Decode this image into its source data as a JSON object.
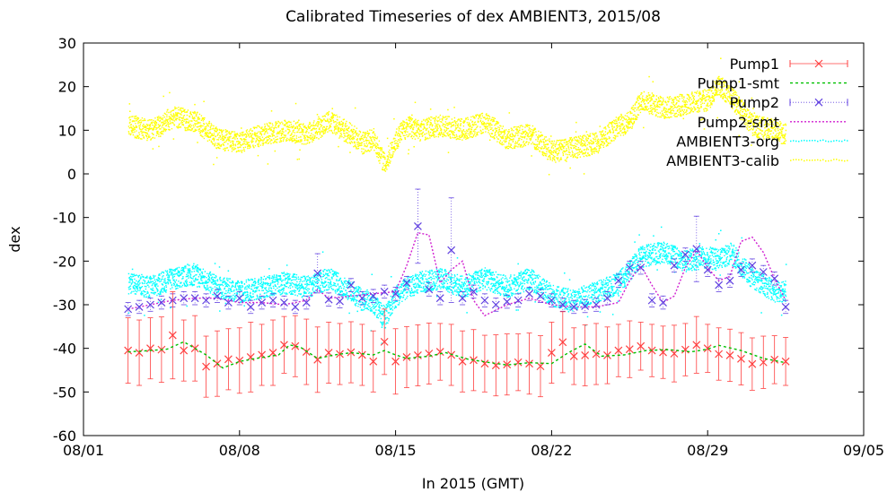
{
  "chart_data": {
    "type": "scatter",
    "title": "Calibrated Timeseries of dex AMBIENT3, 2015/08",
    "xlabel": "In 2015 (GMT)",
    "ylabel": "dex",
    "xlim": [
      "2015-08-01",
      "2015-09-05"
    ],
    "ylim": [
      -60,
      30
    ],
    "x_ticks": [
      {
        "date": "2015-08-01",
        "label": "08/01"
      },
      {
        "date": "2015-08-08",
        "label": "08/08"
      },
      {
        "date": "2015-08-15",
        "label": "08/15"
      },
      {
        "date": "2015-08-22",
        "label": "08/22"
      },
      {
        "date": "2015-08-29",
        "label": "08/29"
      },
      {
        "date": "2015-09-05",
        "label": "09/05"
      }
    ],
    "y_ticks": [
      30,
      20,
      10,
      0,
      -10,
      -20,
      -30,
      -40,
      -50,
      -60
    ],
    "grid": false,
    "legend_position": "top-right",
    "series": [
      {
        "name": "Pump1",
        "style": "points-errorbars",
        "marker": "x",
        "color": "#ff4040",
        "x": [
          "2015-08-03T00:00",
          "2015-08-03T12:00",
          "2015-08-04T00:00",
          "2015-08-04T12:00",
          "2015-08-05T00:00",
          "2015-08-05T12:00",
          "2015-08-06T00:00",
          "2015-08-06T12:00",
          "2015-08-07T00:00",
          "2015-08-07T12:00",
          "2015-08-08T00:00",
          "2015-08-08T12:00",
          "2015-08-09T00:00",
          "2015-08-09T12:00",
          "2015-08-10T00:00",
          "2015-08-10T12:00",
          "2015-08-11T00:00",
          "2015-08-11T12:00",
          "2015-08-12T00:00",
          "2015-08-12T12:00",
          "2015-08-13T00:00",
          "2015-08-13T12:00",
          "2015-08-14T00:00",
          "2015-08-14T12:00",
          "2015-08-15T00:00",
          "2015-08-15T12:00",
          "2015-08-16T00:00",
          "2015-08-16T12:00",
          "2015-08-17T00:00",
          "2015-08-17T12:00",
          "2015-08-18T00:00",
          "2015-08-18T12:00",
          "2015-08-19T00:00",
          "2015-08-19T12:00",
          "2015-08-20T00:00",
          "2015-08-20T12:00",
          "2015-08-21T00:00",
          "2015-08-21T12:00",
          "2015-08-22T00:00",
          "2015-08-22T12:00",
          "2015-08-23T00:00",
          "2015-08-23T12:00",
          "2015-08-24T00:00",
          "2015-08-24T12:00",
          "2015-08-25T00:00",
          "2015-08-25T12:00",
          "2015-08-26T00:00",
          "2015-08-26T12:00",
          "2015-08-27T00:00",
          "2015-08-27T12:00",
          "2015-08-28T00:00",
          "2015-08-28T12:00",
          "2015-08-29T00:00",
          "2015-08-29T12:00",
          "2015-08-30T00:00",
          "2015-08-30T12:00",
          "2015-08-31T00:00",
          "2015-08-31T12:00",
          "2015-09-01T00:00",
          "2015-09-01T12:00"
        ],
        "y": [
          -40.5,
          -41,
          -40,
          -40.3,
          -37,
          -40.5,
          -40,
          -44.2,
          -43.5,
          -42.5,
          -42.8,
          -42,
          -41.5,
          -41,
          -39.2,
          -39.5,
          -40.8,
          -42.6,
          -41,
          -41.3,
          -40.9,
          -41.5,
          -43,
          -38.5,
          -43,
          -42,
          -41.6,
          -41.2,
          -40.8,
          -41.5,
          -43,
          -42.7,
          -43.5,
          -43.9,
          -43.7,
          -43.2,
          -43.5,
          -44.1,
          -41,
          -38.6,
          -41.8,
          -41.6,
          -41.3,
          -41.6,
          -40.5,
          -40.2,
          -39.5,
          -40.5,
          -40.9,
          -41.2,
          -40.3,
          -39.2,
          -40,
          -41.3,
          -41.6,
          -42.4,
          -43.6,
          -43.2,
          -42.6,
          -43
        ],
        "yerr": [
          7.5,
          7.5,
          7,
          7.5,
          10,
          7,
          7.5,
          7,
          7.5,
          7,
          7.5,
          8,
          7,
          7.5,
          6.5,
          7,
          7.5,
          7.5,
          7,
          7,
          7,
          7,
          7,
          7.5,
          7.5,
          7,
          7,
          7,
          6.5,
          7,
          7,
          7,
          6.5,
          7,
          7,
          6.5,
          7,
          7,
          7,
          7,
          6.5,
          7,
          7,
          6.5,
          6,
          6.5,
          5.5,
          6,
          6,
          6.5,
          6,
          6.5,
          5.5,
          6,
          6,
          6,
          6,
          6,
          5.5,
          5.5
        ]
      },
      {
        "name": "Pump1-smt",
        "style": "line",
        "dash": "3,3",
        "color": "#00c000",
        "x": [
          "2015-08-03T00:00",
          "2015-08-04T00:00",
          "2015-08-04T18:00",
          "2015-08-05T12:00",
          "2015-08-06T12:00",
          "2015-08-07T06:00",
          "2015-08-08T00:00",
          "2015-08-08T18:00",
          "2015-08-09T18:00",
          "2015-08-10T06:00",
          "2015-08-10T18:00",
          "2015-08-11T12:00",
          "2015-08-12T06:00",
          "2015-08-13T00:00",
          "2015-08-14T00:00",
          "2015-08-14T12:00",
          "2015-08-15T00:00",
          "2015-08-15T12:00",
          "2015-08-16T12:00",
          "2015-08-17T06:00",
          "2015-08-18T06:00",
          "2015-08-19T06:00",
          "2015-08-20T00:00",
          "2015-08-21T00:00",
          "2015-08-22T00:00",
          "2015-08-22T18:00",
          "2015-08-23T12:00",
          "2015-08-24T06:00",
          "2015-08-25T06:00",
          "2015-08-26T06:00",
          "2015-08-27T06:00",
          "2015-08-28T06:00",
          "2015-08-29T00:00",
          "2015-08-29T12:00",
          "2015-08-30T12:00",
          "2015-08-31T12:00",
          "2015-09-01T12:00"
        ],
        "y": [
          -40.8,
          -40.5,
          -40.2,
          -38.5,
          -41.5,
          -44.5,
          -43,
          -42.3,
          -41.5,
          -39.2,
          -39.8,
          -42.3,
          -41.5,
          -41,
          -41.5,
          -40.5,
          -41.5,
          -42.3,
          -41.8,
          -41,
          -42.5,
          -43.3,
          -43.8,
          -43.3,
          -43.5,
          -41,
          -39,
          -41.8,
          -41.5,
          -40.5,
          -40.3,
          -40.8,
          -40.2,
          -39.3,
          -40.5,
          -42.3,
          -43.3
        ]
      },
      {
        "name": "Pump2",
        "style": "points-errorbars",
        "marker": "x",
        "color": "#6040e0",
        "x": [
          "2015-08-03T00:00",
          "2015-08-03T12:00",
          "2015-08-04T00:00",
          "2015-08-04T12:00",
          "2015-08-05T00:00",
          "2015-08-05T12:00",
          "2015-08-06T00:00",
          "2015-08-06T12:00",
          "2015-08-07T00:00",
          "2015-08-07T12:00",
          "2015-08-08T00:00",
          "2015-08-08T12:00",
          "2015-08-09T00:00",
          "2015-08-09T12:00",
          "2015-08-10T00:00",
          "2015-08-10T12:00",
          "2015-08-11T00:00",
          "2015-08-11T12:00",
          "2015-08-12T00:00",
          "2015-08-12T12:00",
          "2015-08-13T00:00",
          "2015-08-13T12:00",
          "2015-08-14T00:00",
          "2015-08-14T12:00",
          "2015-08-15T00:00",
          "2015-08-15T12:00",
          "2015-08-16T00:00",
          "2015-08-16T12:00",
          "2015-08-17T00:00",
          "2015-08-17T12:00",
          "2015-08-18T00:00",
          "2015-08-18T12:00",
          "2015-08-19T00:00",
          "2015-08-19T12:00",
          "2015-08-20T00:00",
          "2015-08-20T12:00",
          "2015-08-21T00:00",
          "2015-08-21T12:00",
          "2015-08-22T00:00",
          "2015-08-22T12:00",
          "2015-08-23T00:00",
          "2015-08-23T12:00",
          "2015-08-24T00:00",
          "2015-08-24T12:00",
          "2015-08-25T00:00",
          "2015-08-25T12:00",
          "2015-08-26T00:00",
          "2015-08-26T12:00",
          "2015-08-27T00:00",
          "2015-08-27T12:00",
          "2015-08-28T00:00",
          "2015-08-28T12:00",
          "2015-08-29T00:00",
          "2015-08-29T12:00",
          "2015-08-30T00:00",
          "2015-08-30T12:00",
          "2015-08-31T00:00",
          "2015-08-31T12:00",
          "2015-09-01T00:00",
          "2015-09-01T12:00"
        ],
        "y": [
          -31,
          -30.5,
          -30,
          -29.5,
          -29,
          -28.5,
          -28.5,
          -29,
          -28,
          -29.5,
          -28.5,
          -30.5,
          -29.5,
          -29,
          -29.5,
          -30.5,
          -29.5,
          -22.8,
          -28.8,
          -29.2,
          -25.5,
          -28.5,
          -28,
          -27,
          -27.5,
          -25,
          -12,
          -26.5,
          -28.5,
          -17.5,
          -28.5,
          -27,
          -29,
          -30,
          -29.3,
          -29,
          -27.5,
          -28,
          -29,
          -30,
          -30.5,
          -30.3,
          -30,
          -28.5,
          -24.5,
          -21.5,
          -21.5,
          -29,
          -29.5,
          -21,
          -18.5,
          -17.2,
          -22,
          -25.5,
          -24.5,
          -22,
          -21,
          -22.5,
          -24,
          -30.5
        ],
        "yerr": [
          1.5,
          1.5,
          1.5,
          1.5,
          1.5,
          1.5,
          1.5,
          1.5,
          1.5,
          1.5,
          1.5,
          1.5,
          1.5,
          1.5,
          1.5,
          1.5,
          1.5,
          4.5,
          1.5,
          1.5,
          1.5,
          1.5,
          1.5,
          1.5,
          1.5,
          1.5,
          8.5,
          1.5,
          1.5,
          12,
          1.5,
          1.5,
          1.5,
          1.5,
          1.5,
          1.5,
          1.5,
          1.5,
          1.5,
          1.5,
          1.5,
          1.5,
          1.5,
          1.5,
          1.5,
          1.5,
          1.5,
          1.5,
          1.5,
          1.5,
          1.5,
          7.5,
          1.5,
          1.5,
          1.5,
          1.5,
          1.5,
          1.5,
          1.5,
          1.5
        ]
      },
      {
        "name": "Pump2-smt",
        "style": "line",
        "dash": "2,2",
        "color": "#d020d0",
        "x": [
          "2015-08-03T00:00",
          "2015-08-04T00:00",
          "2015-08-05T00:00",
          "2015-08-06T00:00",
          "2015-08-07T00:00",
          "2015-08-08T00:00",
          "2015-08-09T00:00",
          "2015-08-10T00:00",
          "2015-08-11T00:00",
          "2015-08-11T12:00",
          "2015-08-12T00:00",
          "2015-08-13T00:00",
          "2015-08-14T00:00",
          "2015-08-15T00:00",
          "2015-08-15T12:00",
          "2015-08-16T00:00",
          "2015-08-16T12:00",
          "2015-08-17T00:00",
          "2015-08-17T12:00",
          "2015-08-18T00:00",
          "2015-08-18T12:00",
          "2015-08-19T00:00",
          "2015-08-20T00:00",
          "2015-08-21T00:00",
          "2015-08-22T00:00",
          "2015-08-23T00:00",
          "2015-08-24T00:00",
          "2015-08-25T00:00",
          "2015-08-25T12:00",
          "2015-08-26T00:00",
          "2015-08-26T12:00",
          "2015-08-27T00:00",
          "2015-08-27T12:00",
          "2015-08-28T00:00",
          "2015-08-28T12:00",
          "2015-08-29T00:00",
          "2015-08-29T12:00",
          "2015-08-30T00:00",
          "2015-08-30T12:00",
          "2015-08-31T00:00",
          "2015-08-31T12:00",
          "2015-09-01T00:00",
          "2015-09-01T12:00"
        ],
        "y": [
          -31,
          -30,
          -29,
          -28.5,
          -28.5,
          -29.5,
          -29.5,
          -30,
          -29,
          -26.5,
          -28.5,
          -28,
          -27.5,
          -27,
          -21,
          -13.5,
          -14,
          -25,
          -22,
          -20,
          -29,
          -32.5,
          -30,
          -28.5,
          -30,
          -30.5,
          -30.5,
          -29.5,
          -24.5,
          -21,
          -25.5,
          -29.5,
          -28,
          -21.5,
          -17.5,
          -21.5,
          -24.5,
          -23.5,
          -15.5,
          -14.5,
          -18,
          -24,
          -29
        ]
      },
      {
        "name": "AMBIENT3-org",
        "style": "dense-points",
        "color": "#00ffff",
        "x": [
          "2015-08-03T00:00",
          "2015-08-04T00:00",
          "2015-08-05T00:00",
          "2015-08-06T00:00",
          "2015-08-07T00:00",
          "2015-08-08T00:00",
          "2015-08-09T00:00",
          "2015-08-10T00:00",
          "2015-08-11T00:00",
          "2015-08-12T00:00",
          "2015-08-13T00:00",
          "2015-08-13T12:00",
          "2015-08-14T00:00",
          "2015-08-14T12:00",
          "2015-08-15T00:00",
          "2015-08-15T12:00",
          "2015-08-16T00:00",
          "2015-08-17T00:00",
          "2015-08-18T00:00",
          "2015-08-19T00:00",
          "2015-08-20T00:00",
          "2015-08-21T00:00",
          "2015-08-22T00:00",
          "2015-08-23T00:00",
          "2015-08-24T00:00",
          "2015-08-25T00:00",
          "2015-08-25T12:00",
          "2015-08-26T00:00",
          "2015-08-27T00:00",
          "2015-08-28T00:00",
          "2015-08-29T00:00",
          "2015-08-29T12:00",
          "2015-08-30T00:00",
          "2015-08-31T00:00",
          "2015-09-01T00:00",
          "2015-09-01T12:00"
        ],
        "y": [
          -25,
          -26,
          -24,
          -23,
          -26,
          -27,
          -26,
          -25,
          -26,
          -24,
          -27,
          -29,
          -30,
          -33,
          -28,
          -26,
          -25,
          -24,
          -26,
          -24,
          -26,
          -24,
          -28,
          -29,
          -27,
          -25,
          -22,
          -19,
          -18,
          -20,
          -19,
          -20,
          -18,
          -24,
          -27,
          -27
        ]
      },
      {
        "name": "AMBIENT3-calib",
        "style": "dense-points",
        "color": "#ffff00",
        "x": [
          "2015-08-03T00:00",
          "2015-08-04T00:00",
          "2015-08-05T00:00",
          "2015-08-06T00:00",
          "2015-08-07T00:00",
          "2015-08-08T00:00",
          "2015-08-09T00:00",
          "2015-08-10T00:00",
          "2015-08-11T00:00",
          "2015-08-12T00:00",
          "2015-08-13T00:00",
          "2015-08-13T12:00",
          "2015-08-14T00:00",
          "2015-08-14T12:00",
          "2015-08-15T00:00",
          "2015-08-15T12:00",
          "2015-08-16T00:00",
          "2015-08-17T00:00",
          "2015-08-18T00:00",
          "2015-08-19T00:00",
          "2015-08-20T00:00",
          "2015-08-21T00:00",
          "2015-08-22T00:00",
          "2015-08-23T00:00",
          "2015-08-24T00:00",
          "2015-08-25T00:00",
          "2015-08-25T12:00",
          "2015-08-26T00:00",
          "2015-08-27T00:00",
          "2015-08-28T00:00",
          "2015-08-29T00:00",
          "2015-08-29T12:00",
          "2015-08-30T00:00",
          "2015-08-31T00:00",
          "2015-09-01T00:00",
          "2015-09-01T12:00"
        ],
        "y": [
          11,
          10,
          13,
          12,
          8,
          7,
          9,
          10,
          9,
          12,
          9,
          7,
          8,
          2,
          8,
          11,
          10,
          11,
          10,
          12,
          8,
          9,
          5,
          6,
          7,
          11,
          12,
          17,
          15,
          16,
          17,
          20,
          18,
          11,
          10,
          9
        ]
      }
    ]
  }
}
